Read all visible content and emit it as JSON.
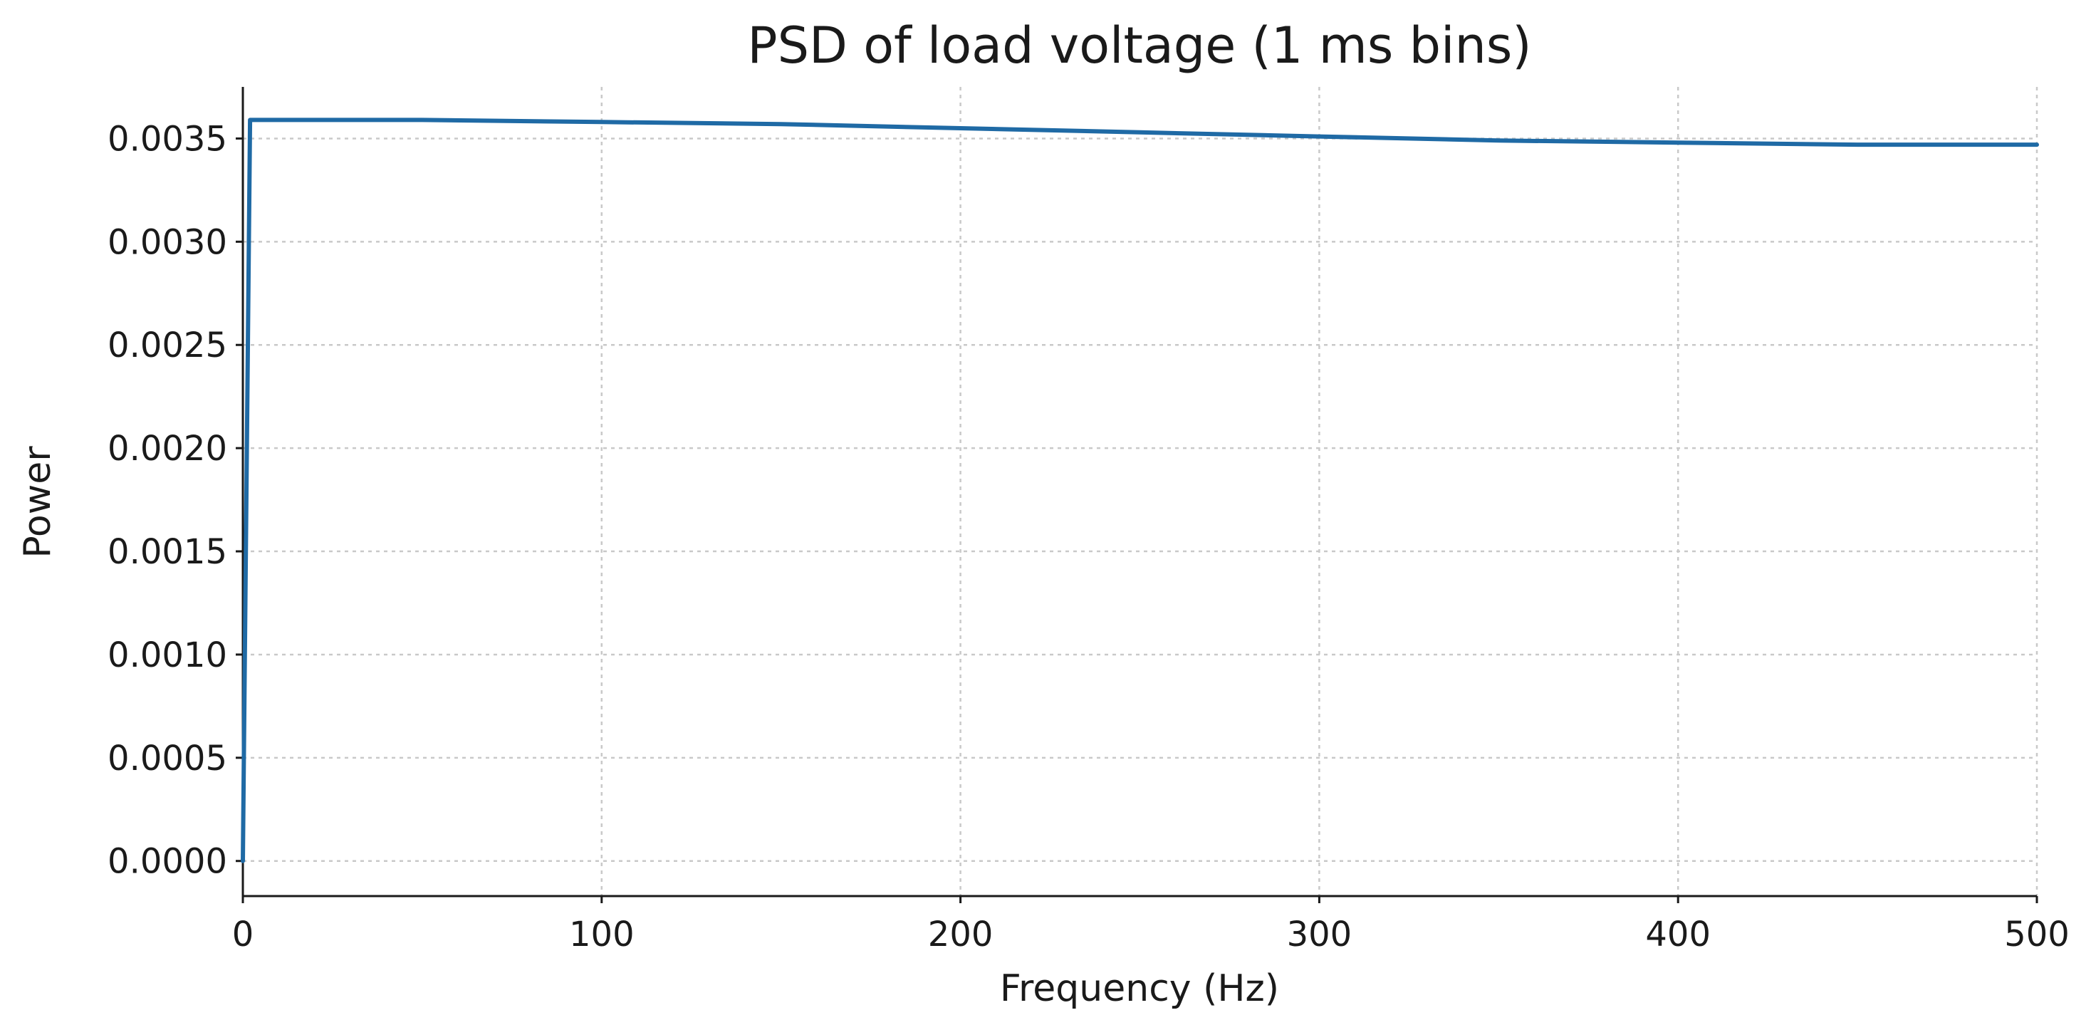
{
  "chart_data": {
    "type": "line",
    "title": "PSD of load voltage (1 ms bins)",
    "xlabel": "Frequency (Hz)",
    "ylabel": "Power",
    "xlim": [
      0,
      500
    ],
    "ylim": [
      -0.00017,
      0.00375
    ],
    "x_ticks": [
      0,
      100,
      200,
      300,
      400,
      500
    ],
    "x_tick_labels": [
      "0",
      "100",
      "200",
      "300",
      "400",
      "500"
    ],
    "y_ticks": [
      0,
      0.0005,
      0.001,
      0.0015,
      0.002,
      0.0025,
      0.003,
      0.0035
    ],
    "y_tick_labels": [
      "0.0000",
      "0.0005",
      "0.0010",
      "0.0015",
      "0.0020",
      "0.0025",
      "0.0030",
      "0.0035"
    ],
    "grid": true,
    "series": [
      {
        "color": "#1f6aa5",
        "x": [
          0,
          2,
          10,
          50,
          100,
          150,
          200,
          250,
          300,
          350,
          400,
          450,
          500
        ],
        "y": [
          0.0,
          0.00359,
          0.00359,
          0.00359,
          0.00358,
          0.00357,
          0.00355,
          0.00353,
          0.00351,
          0.00349,
          0.00348,
          0.00347,
          0.00347
        ]
      }
    ]
  }
}
